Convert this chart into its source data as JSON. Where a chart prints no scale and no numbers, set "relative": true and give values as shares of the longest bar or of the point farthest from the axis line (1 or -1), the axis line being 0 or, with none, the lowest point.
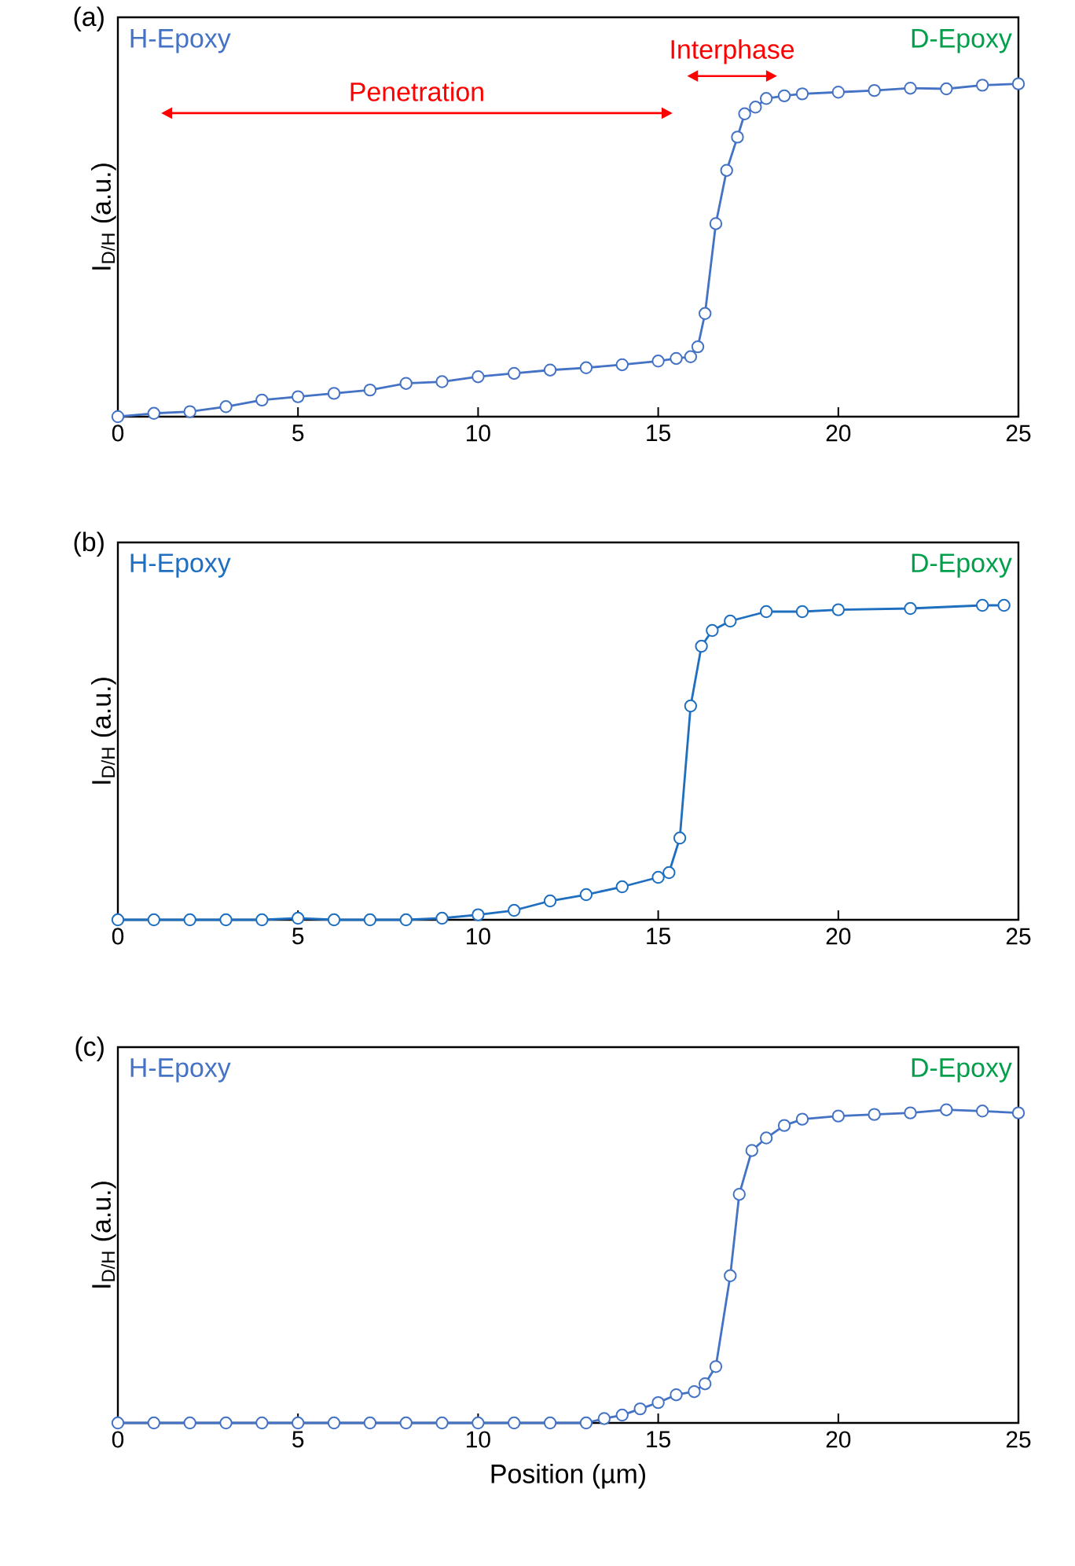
{
  "chart_data": [
    {
      "type": "line",
      "title": "(a)",
      "ylabel": "I$_{D/H}$ (a.u.)",
      "relative": true,
      "marker": "circle",
      "line_style": "solid",
      "xlim": [
        0,
        25
      ],
      "xticks": [
        0,
        5,
        10,
        15,
        20,
        25
      ],
      "x": [
        0,
        1,
        2,
        3,
        4,
        5,
        6,
        7,
        8,
        9,
        10,
        11,
        12,
        13,
        14,
        15,
        15.5,
        15.9,
        16.1,
        16.3,
        16.6,
        16.9,
        17.2,
        17.4,
        17.7,
        18,
        18.5,
        19,
        20,
        21,
        22,
        23,
        24,
        25
      ],
      "series": [
        {
          "color": "#4472c4",
          "values": [
            0,
            0.01,
            0.015,
            0.03,
            0.05,
            0.06,
            0.07,
            0.08,
            0.1,
            0.105,
            0.12,
            0.13,
            0.14,
            0.147,
            0.156,
            0.167,
            0.175,
            0.18,
            0.21,
            0.31,
            0.58,
            0.74,
            0.84,
            0.91,
            0.93,
            0.956,
            0.964,
            0.97,
            0.975,
            0.98,
            0.987,
            0.985,
            0.996,
            1
          ]
        }
      ],
      "annotations": [
        "H-Epoxy",
        "D-Epoxy",
        "Penetration",
        "Interphase"
      ]
    },
    {
      "type": "line",
      "title": "(b)",
      "ylabel": "I$_{D/H}$ (a.u.)",
      "relative": true,
      "marker": "circle",
      "line_style": "solid",
      "xlim": [
        0,
        25
      ],
      "xticks": [
        0,
        5,
        10,
        15,
        20,
        25
      ],
      "x": [
        0,
        1,
        2,
        3,
        4,
        5,
        6,
        7,
        8,
        9,
        10,
        11,
        12,
        13,
        14,
        15,
        15.3,
        15.6,
        15.9,
        16.2,
        16.5,
        17,
        18,
        19,
        20,
        22,
        24,
        24.6
      ],
      "series": [
        {
          "color": "#1f6fc0",
          "values": [
            0,
            0,
            0,
            0,
            0,
            0.005,
            0,
            0,
            0,
            0.005,
            0.016,
            0.03,
            0.06,
            0.08,
            0.105,
            0.135,
            0.15,
            0.26,
            0.68,
            0.87,
            0.92,
            0.95,
            0.98,
            0.98,
            0.986,
            0.99,
            1,
            1
          ]
        }
      ],
      "annotations": [
        "H-Epoxy",
        "D-Epoxy"
      ]
    },
    {
      "type": "line",
      "title": "(c)",
      "xlabel": "Position (µm)",
      "ylabel": "I$_{D/H}$ (a.u.)",
      "relative": true,
      "marker": "circle",
      "line_style": "solid",
      "xlim": [
        0,
        25
      ],
      "xticks": [
        0,
        5,
        10,
        15,
        20,
        25
      ],
      "x": [
        0,
        1,
        2,
        3,
        4,
        5,
        6,
        7,
        8,
        9,
        10,
        11,
        12,
        13,
        13.5,
        14,
        14.5,
        15,
        15.5,
        16,
        16.3,
        16.6,
        17,
        17.25,
        17.6,
        18,
        18.5,
        19,
        20,
        21,
        22,
        23,
        24,
        25
      ],
      "series": [
        {
          "color": "#4472c4",
          "values": [
            0,
            0,
            0,
            0,
            0,
            0,
            0,
            0,
            0,
            0,
            0,
            0,
            0,
            0,
            0.014,
            0.025,
            0.045,
            0.065,
            0.09,
            0.1,
            0.125,
            0.18,
            0.47,
            0.73,
            0.87,
            0.91,
            0.95,
            0.97,
            0.98,
            0.985,
            0.99,
            1,
            0.996,
            0.99
          ]
        }
      ],
      "annotations": [
        "H-Epoxy",
        "D-Epoxy"
      ]
    }
  ]
}
